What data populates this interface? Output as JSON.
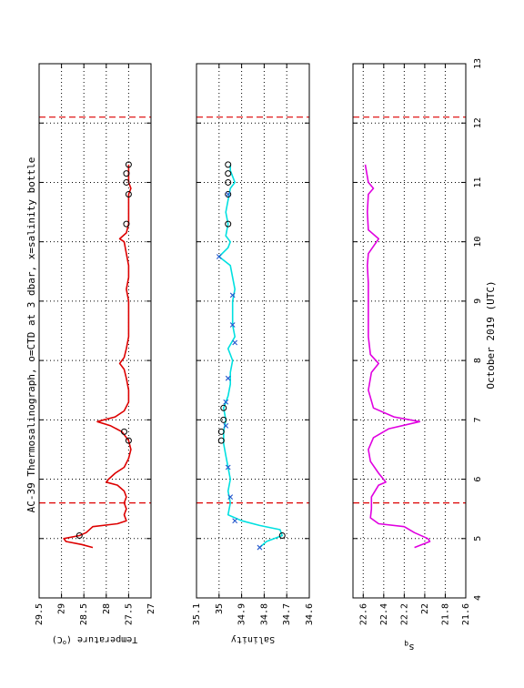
{
  "chart_data": {
    "type": "line",
    "title": "AC-39 Thermosalinograph, o=CTD at 3 dbar, x=salinity bottle",
    "shared_axis_label": "October 2019 (UTC)",
    "shared_axis_range": [
      4,
      13
    ],
    "shared_axis_ticks": [
      "4",
      "5",
      "6",
      "7",
      "8",
      "9",
      "10",
      "11",
      "12",
      "13"
    ],
    "reference_lines_day": [
      5.6,
      12.1
    ],
    "grid": true,
    "panels": [
      {
        "name": "temperature",
        "ylabel": "Temperature (°C)",
        "range": [
          27,
          29.5
        ],
        "ticks": [
          "29.5",
          "29",
          "28.5",
          "28",
          "27.5",
          "27"
        ],
        "color": "#dd0000",
        "series": [
          {
            "x": 4.85,
            "y": 28.3
          },
          {
            "x": 4.9,
            "y": 28.55
          },
          {
            "x": 4.95,
            "y": 28.9
          },
          {
            "x": 5.0,
            "y": 28.95
          },
          {
            "x": 5.05,
            "y": 28.6
          },
          {
            "x": 5.1,
            "y": 28.45
          },
          {
            "x": 5.2,
            "y": 28.3
          },
          {
            "x": 5.25,
            "y": 27.75
          },
          {
            "x": 5.3,
            "y": 27.55
          },
          {
            "x": 5.4,
            "y": 27.6
          },
          {
            "x": 5.5,
            "y": 27.55
          },
          {
            "x": 5.6,
            "y": 27.6
          },
          {
            "x": 5.7,
            "y": 27.55
          },
          {
            "x": 5.8,
            "y": 27.6
          },
          {
            "x": 5.9,
            "y": 27.75
          },
          {
            "x": 5.95,
            "y": 28.0
          },
          {
            "x": 6.0,
            "y": 27.95
          },
          {
            "x": 6.1,
            "y": 27.8
          },
          {
            "x": 6.2,
            "y": 27.6
          },
          {
            "x": 6.35,
            "y": 27.5
          },
          {
            "x": 6.5,
            "y": 27.45
          },
          {
            "x": 6.65,
            "y": 27.5
          },
          {
            "x": 6.8,
            "y": 27.65
          },
          {
            "x": 6.9,
            "y": 27.9
          },
          {
            "x": 6.97,
            "y": 28.2
          },
          {
            "x": 7.0,
            "y": 28.05
          },
          {
            "x": 7.05,
            "y": 27.8
          },
          {
            "x": 7.15,
            "y": 27.6
          },
          {
            "x": 7.3,
            "y": 27.5
          },
          {
            "x": 7.5,
            "y": 27.5
          },
          {
            "x": 7.7,
            "y": 27.55
          },
          {
            "x": 7.85,
            "y": 27.6
          },
          {
            "x": 7.95,
            "y": 27.7
          },
          {
            "x": 8.05,
            "y": 27.6
          },
          {
            "x": 8.2,
            "y": 27.55
          },
          {
            "x": 8.4,
            "y": 27.5
          },
          {
            "x": 8.6,
            "y": 27.5
          },
          {
            "x": 8.8,
            "y": 27.5
          },
          {
            "x": 9.0,
            "y": 27.5
          },
          {
            "x": 9.2,
            "y": 27.55
          },
          {
            "x": 9.4,
            "y": 27.5
          },
          {
            "x": 9.6,
            "y": 27.5
          },
          {
            "x": 9.8,
            "y": 27.55
          },
          {
            "x": 10.0,
            "y": 27.6
          },
          {
            "x": 10.05,
            "y": 27.7
          },
          {
            "x": 10.15,
            "y": 27.55
          },
          {
            "x": 10.3,
            "y": 27.5
          },
          {
            "x": 10.5,
            "y": 27.5
          },
          {
            "x": 10.7,
            "y": 27.5
          },
          {
            "x": 10.8,
            "y": 27.5
          },
          {
            "x": 10.9,
            "y": 27.45
          },
          {
            "x": 11.0,
            "y": 27.5
          },
          {
            "x": 11.2,
            "y": 27.5
          },
          {
            "x": 11.3,
            "y": 27.5
          }
        ],
        "ctd_points": [
          {
            "x": 5.05,
            "y": 28.6
          },
          {
            "x": 6.65,
            "y": 27.5
          },
          {
            "x": 6.8,
            "y": 27.6
          },
          {
            "x": 10.3,
            "y": 27.55
          },
          {
            "x": 10.8,
            "y": 27.5
          },
          {
            "x": 11.0,
            "y": 27.55
          },
          {
            "x": 11.15,
            "y": 27.55
          },
          {
            "x": 11.3,
            "y": 27.5
          }
        ],
        "bottle_points": []
      },
      {
        "name": "salinity",
        "ylabel": "Salinity",
        "range": [
          34.6,
          35.1
        ],
        "ticks": [
          "35.1",
          "35",
          "34.9",
          "34.8",
          "34.7",
          "34.6"
        ],
        "color": "#00e0e0",
        "series": [
          {
            "x": 4.85,
            "y": 34.82
          },
          {
            "x": 4.95,
            "y": 34.79
          },
          {
            "x": 5.05,
            "y": 34.72
          },
          {
            "x": 5.15,
            "y": 34.73
          },
          {
            "x": 5.22,
            "y": 34.82
          },
          {
            "x": 5.3,
            "y": 34.9
          },
          {
            "x": 5.4,
            "y": 34.96
          },
          {
            "x": 5.6,
            "y": 34.95
          },
          {
            "x": 5.8,
            "y": 34.96
          },
          {
            "x": 6.0,
            "y": 34.95
          },
          {
            "x": 6.2,
            "y": 34.96
          },
          {
            "x": 6.4,
            "y": 34.97
          },
          {
            "x": 6.6,
            "y": 34.98
          },
          {
            "x": 6.8,
            "y": 34.98
          },
          {
            "x": 7.0,
            "y": 34.97
          },
          {
            "x": 7.2,
            "y": 34.98
          },
          {
            "x": 7.4,
            "y": 34.96
          },
          {
            "x": 7.6,
            "y": 34.95
          },
          {
            "x": 7.8,
            "y": 34.95
          },
          {
            "x": 8.0,
            "y": 34.94
          },
          {
            "x": 8.2,
            "y": 34.96
          },
          {
            "x": 8.4,
            "y": 34.93
          },
          {
            "x": 8.6,
            "y": 34.94
          },
          {
            "x": 8.8,
            "y": 34.94
          },
          {
            "x": 9.0,
            "y": 34.94
          },
          {
            "x": 9.2,
            "y": 34.93
          },
          {
            "x": 9.4,
            "y": 34.94
          },
          {
            "x": 9.6,
            "y": 34.95
          },
          {
            "x": 9.75,
            "y": 35.0
          },
          {
            "x": 9.9,
            "y": 34.96
          },
          {
            "x": 10.0,
            "y": 34.95
          },
          {
            "x": 10.1,
            "y": 34.97
          },
          {
            "x": 10.3,
            "y": 34.96
          },
          {
            "x": 10.5,
            "y": 34.97
          },
          {
            "x": 10.7,
            "y": 34.96
          },
          {
            "x": 10.9,
            "y": 34.95
          },
          {
            "x": 11.0,
            "y": 34.93
          },
          {
            "x": 11.2,
            "y": 34.95
          },
          {
            "x": 11.3,
            "y": 34.95
          }
        ],
        "ctd_points": [
          {
            "x": 5.05,
            "y": 34.72
          },
          {
            "x": 6.65,
            "y": 34.99
          },
          {
            "x": 6.8,
            "y": 34.99
          },
          {
            "x": 7.0,
            "y": 34.98
          },
          {
            "x": 7.2,
            "y": 34.98
          },
          {
            "x": 10.3,
            "y": 34.96
          },
          {
            "x": 10.8,
            "y": 34.96
          },
          {
            "x": 11.0,
            "y": 34.96
          },
          {
            "x": 11.15,
            "y": 34.96
          },
          {
            "x": 11.3,
            "y": 34.96
          }
        ],
        "bottle_points": [
          {
            "x": 4.85,
            "y": 34.82
          },
          {
            "x": 5.3,
            "y": 34.93
          },
          {
            "x": 5.7,
            "y": 34.95
          },
          {
            "x": 6.2,
            "y": 34.96
          },
          {
            "x": 6.9,
            "y": 34.97
          },
          {
            "x": 7.3,
            "y": 34.97
          },
          {
            "x": 7.7,
            "y": 34.96
          },
          {
            "x": 8.3,
            "y": 34.93
          },
          {
            "x": 8.6,
            "y": 34.94
          },
          {
            "x": 9.1,
            "y": 34.94
          },
          {
            "x": 9.75,
            "y": 35.0
          },
          {
            "x": 10.8,
            "y": 34.96
          }
        ]
      },
      {
        "name": "sigma-theta",
        "ylabel": "σθ",
        "range": [
          21.6,
          22.7
        ],
        "ticks": [
          "22.6",
          "22.4",
          "22.2",
          "22",
          "21.8",
          "21.6"
        ],
        "color": "#e000e0",
        "series": [
          {
            "x": 4.85,
            "y": 22.1
          },
          {
            "x": 4.95,
            "y": 21.95
          },
          {
            "x": 5.0,
            "y": 21.97
          },
          {
            "x": 5.1,
            "y": 22.1
          },
          {
            "x": 5.2,
            "y": 22.2
          },
          {
            "x": 5.25,
            "y": 22.45
          },
          {
            "x": 5.35,
            "y": 22.53
          },
          {
            "x": 5.5,
            "y": 22.52
          },
          {
            "x": 5.7,
            "y": 22.52
          },
          {
            "x": 5.9,
            "y": 22.45
          },
          {
            "x": 5.95,
            "y": 22.38
          },
          {
            "x": 6.1,
            "y": 22.45
          },
          {
            "x": 6.3,
            "y": 22.53
          },
          {
            "x": 6.5,
            "y": 22.55
          },
          {
            "x": 6.7,
            "y": 22.5
          },
          {
            "x": 6.85,
            "y": 22.35
          },
          {
            "x": 6.97,
            "y": 22.05
          },
          {
            "x": 7.05,
            "y": 22.3
          },
          {
            "x": 7.2,
            "y": 22.5
          },
          {
            "x": 7.5,
            "y": 22.55
          },
          {
            "x": 7.8,
            "y": 22.52
          },
          {
            "x": 7.95,
            "y": 22.45
          },
          {
            "x": 8.1,
            "y": 22.53
          },
          {
            "x": 8.4,
            "y": 22.55
          },
          {
            "x": 8.7,
            "y": 22.55
          },
          {
            "x": 9.0,
            "y": 22.55
          },
          {
            "x": 9.3,
            "y": 22.55
          },
          {
            "x": 9.6,
            "y": 22.56
          },
          {
            "x": 9.8,
            "y": 22.55
          },
          {
            "x": 10.05,
            "y": 22.45
          },
          {
            "x": 10.2,
            "y": 22.55
          },
          {
            "x": 10.5,
            "y": 22.56
          },
          {
            "x": 10.8,
            "y": 22.55
          },
          {
            "x": 10.9,
            "y": 22.5
          },
          {
            "x": 11.0,
            "y": 22.55
          },
          {
            "x": 11.3,
            "y": 22.58
          }
        ],
        "ctd_points": [],
        "bottle_points": []
      }
    ]
  },
  "panels_text": {
    "ylabel_temp": "Temperature (",
    "ylabel_temp_sup": "o",
    "ylabel_temp_end": "C)",
    "ylabel_sal": "Salinity",
    "ylabel_sig_main": "s",
    "ylabel_sig_sub": "q"
  }
}
